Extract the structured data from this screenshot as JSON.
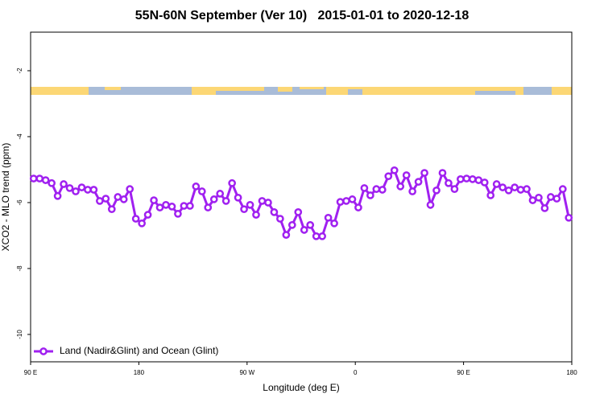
{
  "chart_data": {
    "type": "line",
    "title": "55N-60N September (Ver 10)   2015-01-01 to 2020-12-18",
    "xlabel": "Longitude (deg E)",
    "ylabel": "XCO2 - MLO trend (ppm)",
    "x": [
      92.5,
      97.5,
      102.5,
      107.5,
      112.5,
      117.5,
      122.5,
      127.5,
      132.5,
      137.5,
      142.5,
      147.5,
      152.5,
      157.5,
      162.5,
      167.5,
      172.5,
      177.5,
      182.5,
      187.5,
      192.5,
      197.5,
      202.5,
      207.5,
      212.5,
      217.5,
      222.5,
      227.5,
      232.5,
      237.5,
      242.5,
      247.5,
      252.5,
      257.5,
      262.5,
      267.5,
      272.5,
      277.5,
      282.5,
      287.5,
      292.5,
      297.5,
      302.5,
      307.5,
      312.5,
      317.5,
      322.5,
      327.5,
      332.5,
      337.5,
      342.5,
      347.5,
      352.5,
      357.5,
      362.5,
      367.5,
      372.5,
      377.5,
      382.5,
      387.5,
      392.5,
      397.5,
      402.5,
      407.5,
      412.5,
      417.5,
      422.5,
      427.5,
      432.5,
      437.5,
      442.5,
      447.5,
      452.5,
      457.5,
      462.5,
      467.5,
      472.5,
      477.5,
      482.5,
      487.5,
      492.5,
      497.5,
      502.5,
      507.5,
      512.5,
      517.5,
      522.5,
      527.5,
      532.5,
      537.5
    ],
    "series": [
      {
        "name": "Land (Nadir&Glint) and Ocean (Glint)",
        "color": "#a020f0",
        "values": [
          -5.27,
          -5.27,
          -5.32,
          -5.41,
          -5.8,
          -5.44,
          -5.56,
          -5.66,
          -5.54,
          -5.61,
          -5.61,
          -5.95,
          -5.88,
          -6.2,
          -5.83,
          -5.9,
          -5.59,
          -6.49,
          -6.63,
          -6.37,
          -5.93,
          -6.15,
          -6.07,
          -6.12,
          -6.34,
          -6.1,
          -6.1,
          -5.51,
          -5.66,
          -6.15,
          -5.9,
          -5.73,
          -5.95,
          -5.41,
          -5.85,
          -6.2,
          -6.07,
          -6.37,
          -5.95,
          -6.0,
          -6.29,
          -6.49,
          -6.98,
          -6.68,
          -6.29,
          -6.83,
          -6.68,
          -7.02,
          -7.02,
          -6.46,
          -6.63,
          -5.98,
          -5.95,
          -5.9,
          -6.15,
          -5.56,
          -5.78,
          -5.59,
          -5.61,
          -5.2,
          -5.02,
          -5.51,
          -5.17,
          -5.66,
          -5.37,
          -5.1,
          -6.07,
          -5.63,
          -5.1,
          -5.41,
          -5.59,
          -5.29,
          -5.27,
          -5.29,
          -5.32,
          -5.39,
          -5.78,
          -5.44,
          -5.54,
          -5.63,
          -5.54,
          -5.61,
          -5.59,
          -5.93,
          -5.85,
          -6.17,
          -5.83,
          -5.88,
          -5.59,
          -6.46
        ]
      }
    ],
    "xlim": [
      90,
      540
    ],
    "xticks": [
      {
        "value": 90,
        "label": "90 E"
      },
      {
        "value": 180,
        "label": "180"
      },
      {
        "value": 270,
        "label": "90 W"
      },
      {
        "value": 360,
        "label": "0"
      },
      {
        "value": 450,
        "label": "90 E"
      },
      {
        "value": 540,
        "label": "180"
      }
    ],
    "ylim": [
      -10.83,
      -0.83
    ],
    "yticks": [
      -2,
      -4,
      -6,
      -8,
      -10
    ],
    "legend": "bottom-left"
  }
}
